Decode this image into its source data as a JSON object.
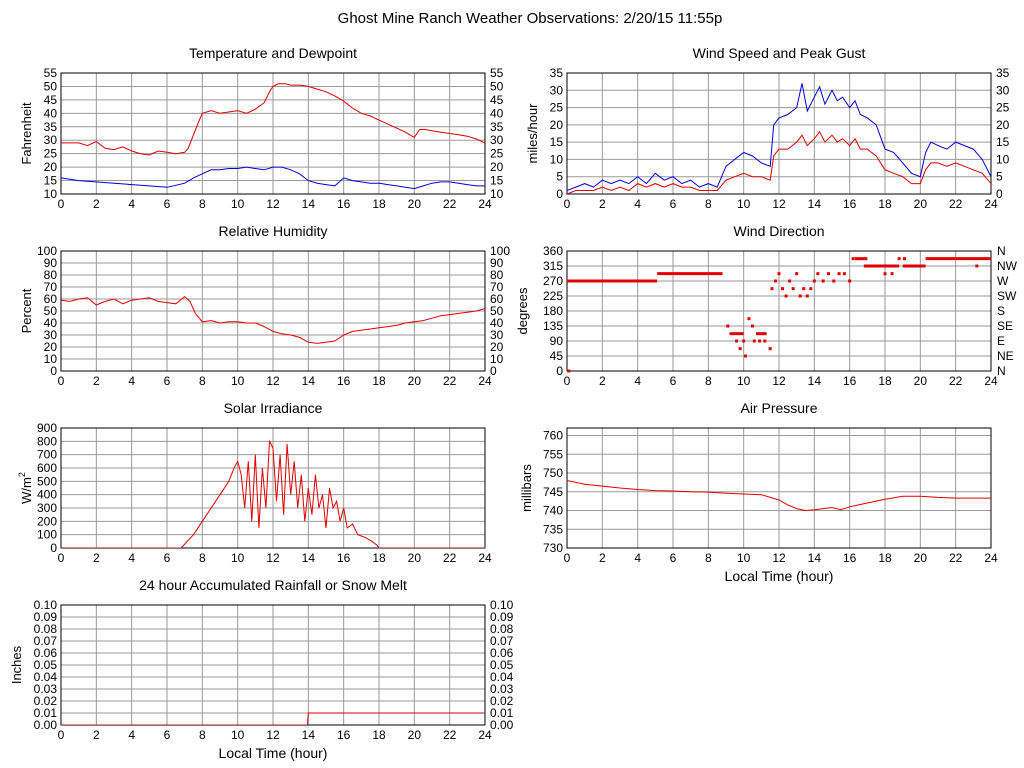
{
  "page": {
    "title": "Ghost Mine Ranch Weather Observations: 2/20/15 11:55p"
  },
  "chart_data": [
    {
      "id": "temp",
      "type": "line",
      "title": "Temperature and Dewpoint",
      "xlabel": "",
      "ylabel": "Fahrenheit",
      "xlim": [
        0,
        24
      ],
      "ylim": [
        10,
        55
      ],
      "xticks": [
        0,
        2,
        4,
        6,
        8,
        10,
        12,
        14,
        16,
        18,
        20,
        22,
        24
      ],
      "yticks": [
        10,
        15,
        20,
        25,
        30,
        35,
        40,
        45,
        50,
        55
      ],
      "right_axis": true,
      "grid": true,
      "series": [
        {
          "color": "#e00000",
          "x": [
            0,
            1,
            1.5,
            2,
            2.5,
            3,
            3.5,
            4,
            4.5,
            5,
            5.5,
            6,
            6.5,
            7,
            7.2,
            7.5,
            7.8,
            8,
            8.5,
            9,
            9.5,
            10,
            10.5,
            11,
            11.5,
            11.8,
            12,
            12.3,
            12.7,
            13,
            13.5,
            14,
            14.5,
            15,
            15.5,
            16,
            16.5,
            17,
            17.5,
            18,
            18.5,
            19,
            19.5,
            20,
            20.3,
            20.6,
            21,
            21.5,
            22,
            22.5,
            23,
            23.5,
            24
          ],
          "values": [
            29,
            29,
            28,
            29.5,
            27,
            26.5,
            27.5,
            26,
            25,
            24.5,
            26,
            25.5,
            25,
            25.5,
            27,
            32,
            37,
            40,
            41,
            40,
            40.5,
            41,
            40,
            41.5,
            44,
            48,
            50,
            51,
            51,
            50.5,
            50.5,
            50,
            49,
            48,
            46.5,
            44.5,
            42,
            40,
            39,
            37.5,
            36,
            34.5,
            33,
            31,
            34,
            34,
            33.5,
            33,
            32.5,
            32,
            31.5,
            30.5,
            29
          ]
        },
        {
          "color": "#0000e0",
          "x": [
            0,
            1,
            2,
            3,
            4,
            5,
            6,
            7,
            7.5,
            8,
            8.5,
            9,
            9.5,
            10,
            10.5,
            11,
            11.5,
            12,
            12.5,
            13,
            13.5,
            14,
            14.5,
            15,
            15.5,
            16,
            16.5,
            17,
            17.5,
            18,
            18.5,
            19,
            19.5,
            20,
            20.5,
            21,
            21.5,
            22,
            22.5,
            23,
            23.5,
            24
          ],
          "values": [
            16,
            15,
            14.5,
            14,
            13.5,
            13,
            12.5,
            14,
            16,
            17.5,
            19,
            19,
            19.5,
            19.5,
            20,
            19.5,
            19,
            20,
            20,
            19,
            17.5,
            15,
            14,
            13.5,
            13,
            16,
            15,
            14.5,
            14,
            14,
            13.5,
            13,
            12.5,
            12,
            13,
            14,
            14.5,
            14.5,
            14,
            13.5,
            13,
            13
          ]
        }
      ]
    },
    {
      "id": "wind",
      "type": "line",
      "title": "Wind Speed and Peak Gust",
      "xlabel": "",
      "ylabel": "miles/hour",
      "xlim": [
        0,
        24
      ],
      "ylim": [
        0,
        35
      ],
      "xticks": [
        0,
        2,
        4,
        6,
        8,
        10,
        12,
        14,
        16,
        18,
        20,
        22,
        24
      ],
      "yticks": [
        0,
        5,
        10,
        15,
        20,
        25,
        30,
        35
      ],
      "right_axis": true,
      "grid": true,
      "series": [
        {
          "color": "#0000e0",
          "x": [
            0,
            0.5,
            1,
            1.5,
            2,
            2.5,
            3,
            3.5,
            4,
            4.5,
            5,
            5.5,
            6,
            6.5,
            7,
            7.5,
            8,
            8.5,
            9,
            9.5,
            10,
            10.5,
            11,
            11.5,
            11.7,
            12,
            12.5,
            13,
            13.3,
            13.6,
            14,
            14.3,
            14.6,
            15,
            15.3,
            15.6,
            16,
            16.3,
            16.6,
            17,
            17.5,
            18,
            18.5,
            19,
            19.5,
            20,
            20.3,
            20.6,
            21,
            21.5,
            22,
            22.5,
            23,
            23.5,
            24
          ],
          "values": [
            1,
            2,
            3,
            2,
            4,
            3,
            4,
            3,
            5,
            3,
            6,
            4,
            5,
            3,
            4,
            2,
            3,
            2,
            8,
            10,
            12,
            11,
            9,
            8,
            20,
            22,
            23,
            25,
            32,
            24,
            28,
            31,
            26,
            30,
            27,
            28,
            25,
            27,
            23,
            22,
            20,
            13,
            12,
            9,
            6,
            5,
            12,
            15,
            14,
            13,
            15,
            14,
            13,
            10,
            5
          ]
        },
        {
          "color": "#e00000",
          "x": [
            0,
            0.5,
            1,
            1.5,
            2,
            2.5,
            3,
            3.5,
            4,
            4.5,
            5,
            5.5,
            6,
            6.5,
            7,
            7.5,
            8,
            8.5,
            9,
            9.5,
            10,
            10.5,
            11,
            11.5,
            11.7,
            12,
            12.5,
            13,
            13.3,
            13.6,
            14,
            14.3,
            14.6,
            15,
            15.3,
            15.6,
            16,
            16.3,
            16.6,
            17,
            17.5,
            18,
            18.5,
            19,
            19.5,
            20,
            20.3,
            20.6,
            21,
            21.5,
            22,
            22.5,
            23,
            23.5,
            24
          ],
          "values": [
            0,
            1,
            1,
            1,
            2,
            1,
            2,
            1,
            3,
            2,
            3,
            2,
            3,
            2,
            2,
            1,
            1,
            1,
            4,
            5,
            6,
            5,
            5,
            4,
            11,
            13,
            13,
            15,
            17,
            14,
            16,
            18,
            15,
            17,
            15,
            16,
            14,
            16,
            13,
            13,
            11,
            7,
            6,
            5,
            3,
            3,
            7,
            9,
            9,
            8,
            9,
            8,
            7,
            6,
            3
          ]
        }
      ]
    },
    {
      "id": "humidity",
      "type": "line",
      "title": "Relative Humidity",
      "xlabel": "",
      "ylabel": "Percent",
      "xlim": [
        0,
        24
      ],
      "ylim": [
        0,
        100
      ],
      "xticks": [
        0,
        2,
        4,
        6,
        8,
        10,
        12,
        14,
        16,
        18,
        20,
        22,
        24
      ],
      "yticks": [
        0,
        10,
        20,
        30,
        40,
        50,
        60,
        70,
        80,
        90,
        100
      ],
      "right_axis": true,
      "grid": true,
      "series": [
        {
          "color": "#e00000",
          "x": [
            0,
            0.5,
            1,
            1.5,
            2,
            2.5,
            3,
            3.5,
            4,
            4.5,
            5,
            5.5,
            6,
            6.5,
            7,
            7.3,
            7.6,
            8,
            8.5,
            9,
            9.5,
            10,
            10.5,
            11,
            11.5,
            12,
            12.5,
            13,
            13.5,
            14,
            14.5,
            15,
            15.5,
            16,
            16.5,
            17,
            17.5,
            18,
            18.5,
            19,
            19.5,
            20,
            20.5,
            21,
            21.5,
            22,
            22.5,
            23,
            23.5,
            24
          ],
          "values": [
            59,
            58,
            60,
            61,
            55,
            58,
            60,
            56,
            59,
            60,
            61,
            58,
            57,
            56,
            62,
            58,
            48,
            41,
            42,
            40,
            41,
            41,
            40,
            40,
            37,
            33,
            31,
            30,
            28,
            24,
            23,
            24,
            25,
            30,
            33,
            34,
            35,
            36,
            37,
            38,
            40,
            41,
            42,
            44,
            46,
            47,
            48,
            49,
            50,
            52
          ]
        }
      ]
    },
    {
      "id": "direction",
      "type": "scatter",
      "title": "Wind Direction",
      "xlabel": "",
      "ylabel": "degrees",
      "xlim": [
        0,
        24
      ],
      "ylim": [
        0,
        360
      ],
      "xticks": [
        0,
        2,
        4,
        6,
        8,
        10,
        12,
        14,
        16,
        18,
        20,
        22,
        24
      ],
      "yticks": [
        0,
        45,
        90,
        135,
        180,
        225,
        270,
        315,
        360
      ],
      "right_tick_labels": [
        "N",
        "NE",
        "E",
        "SE",
        "S",
        "SW",
        "W",
        "NW",
        "N"
      ],
      "grid": true,
      "color": "#e00000",
      "segments": [
        {
          "x": [
            0,
            5.1
          ],
          "y": 270
        },
        {
          "x": [
            5.1,
            8.8
          ],
          "y": 292
        },
        {
          "x": [
            9.2,
            10.0
          ],
          "y": 112
        },
        {
          "x": [
            10.7,
            11.3
          ],
          "y": 112
        },
        {
          "x": [
            16.3,
            17.0
          ],
          "y": 337
        },
        {
          "x": [
            16.8,
            18.8
          ],
          "y": 315
        },
        {
          "x": [
            19.0,
            20.3
          ],
          "y": 315
        },
        {
          "x": [
            20.3,
            24
          ],
          "y": 337
        }
      ],
      "points": [
        {
          "x": 0.1,
          "y": 0
        },
        {
          "x": 9.1,
          "y": 135
        },
        {
          "x": 9.6,
          "y": 90
        },
        {
          "x": 9.8,
          "y": 67
        },
        {
          "x": 10.0,
          "y": 90
        },
        {
          "x": 10.1,
          "y": 45
        },
        {
          "x": 10.3,
          "y": 157
        },
        {
          "x": 10.5,
          "y": 135
        },
        {
          "x": 10.6,
          "y": 90
        },
        {
          "x": 10.9,
          "y": 90
        },
        {
          "x": 11.2,
          "y": 90
        },
        {
          "x": 11.5,
          "y": 67
        },
        {
          "x": 11.6,
          "y": 247
        },
        {
          "x": 11.8,
          "y": 270
        },
        {
          "x": 12.0,
          "y": 292
        },
        {
          "x": 12.2,
          "y": 247
        },
        {
          "x": 12.4,
          "y": 225
        },
        {
          "x": 12.6,
          "y": 270
        },
        {
          "x": 12.8,
          "y": 247
        },
        {
          "x": 13.0,
          "y": 292
        },
        {
          "x": 13.2,
          "y": 225
        },
        {
          "x": 13.4,
          "y": 247
        },
        {
          "x": 13.6,
          "y": 225
        },
        {
          "x": 13.8,
          "y": 247
        },
        {
          "x": 14.0,
          "y": 270
        },
        {
          "x": 14.2,
          "y": 292
        },
        {
          "x": 14.5,
          "y": 270
        },
        {
          "x": 14.8,
          "y": 292
        },
        {
          "x": 15.1,
          "y": 270
        },
        {
          "x": 15.4,
          "y": 292
        },
        {
          "x": 15.7,
          "y": 292
        },
        {
          "x": 16.0,
          "y": 270
        },
        {
          "x": 16.2,
          "y": 337
        },
        {
          "x": 18.0,
          "y": 292
        },
        {
          "x": 18.4,
          "y": 292
        },
        {
          "x": 18.8,
          "y": 337
        },
        {
          "x": 19.1,
          "y": 337
        },
        {
          "x": 23.2,
          "y": 315
        }
      ]
    },
    {
      "id": "solar",
      "type": "line",
      "title": "Solar Irradiance",
      "xlabel": "",
      "ylabel": "W/m",
      "ylabel_sup": "2",
      "xlim": [
        0,
        24
      ],
      "ylim": [
        0,
        900
      ],
      "xticks": [
        0,
        2,
        4,
        6,
        8,
        10,
        12,
        14,
        16,
        18,
        20,
        22,
        24
      ],
      "yticks": [
        0,
        100,
        200,
        300,
        400,
        500,
        600,
        700,
        800,
        900
      ],
      "right_axis": false,
      "grid": true,
      "series": [
        {
          "color": "#e00000",
          "x": [
            0,
            6.8,
            7.5,
            8,
            8.5,
            9,
            9.5,
            9.8,
            10,
            10.2,
            10.4,
            10.6,
            10.8,
            11,
            11.2,
            11.4,
            11.6,
            11.8,
            12,
            12.2,
            12.4,
            12.6,
            12.8,
            13,
            13.2,
            13.4,
            13.6,
            13.8,
            14,
            14.2,
            14.4,
            14.6,
            14.8,
            15,
            15.2,
            15.4,
            15.6,
            15.8,
            16,
            16.2,
            16.5,
            16.8,
            17.2,
            17.6,
            17.9,
            18,
            24
          ],
          "values": [
            0,
            0,
            100,
            200,
            300,
            400,
            500,
            600,
            650,
            550,
            300,
            650,
            200,
            700,
            150,
            600,
            300,
            800,
            750,
            350,
            700,
            250,
            780,
            400,
            650,
            300,
            550,
            200,
            450,
            250,
            550,
            300,
            400,
            150,
            450,
            300,
            350,
            200,
            300,
            150,
            180,
            100,
            80,
            50,
            20,
            0,
            0
          ]
        }
      ]
    },
    {
      "id": "pressure",
      "type": "line",
      "title": "Air Pressure",
      "xlabel": "Local Time (hour)",
      "ylabel": "millibars",
      "xlim": [
        0,
        24
      ],
      "ylim": [
        730,
        762
      ],
      "xticks": [
        0,
        2,
        4,
        6,
        8,
        10,
        12,
        14,
        16,
        18,
        20,
        22,
        24
      ],
      "yticks": [
        730,
        735,
        740,
        745,
        750,
        755,
        760
      ],
      "right_axis": false,
      "grid": true,
      "series": [
        {
          "color": "#e00000",
          "x": [
            0,
            1,
            2,
            3,
            4,
            5,
            6,
            7,
            8,
            9,
            10,
            11,
            12,
            12.5,
            13,
            13.5,
            14,
            14.5,
            15,
            15.5,
            16,
            16.5,
            17,
            18,
            19,
            20,
            21,
            22,
            23,
            24
          ],
          "values": [
            748,
            747,
            746.5,
            746,
            745.6,
            745.3,
            745.2,
            745,
            744.9,
            744.6,
            744.4,
            744.2,
            742.8,
            741.5,
            740.5,
            740,
            740.2,
            740.5,
            740.8,
            740.2,
            741,
            741.5,
            742,
            743,
            743.8,
            743.8,
            743.5,
            743.3,
            743.3,
            743.3
          ]
        }
      ]
    },
    {
      "id": "rain",
      "type": "line",
      "title": "24 hour Accumulated Rainfall or Snow Melt",
      "xlabel": "Local Time (hour)",
      "ylabel": "Inches",
      "xlim": [
        0,
        24
      ],
      "ylim": [
        0,
        0.1
      ],
      "xticks": [
        0,
        2,
        4,
        6,
        8,
        10,
        12,
        14,
        16,
        18,
        20,
        22,
        24
      ],
      "yticks": [
        "0.00",
        "0.01",
        "0.02",
        "0.03",
        "0.04",
        "0.05",
        "0.06",
        "0.07",
        "0.08",
        "0.09",
        "0.10"
      ],
      "right_axis": true,
      "grid": true,
      "series": [
        {
          "color": "#e00000",
          "x": [
            0,
            13.95,
            14.0,
            24
          ],
          "values": [
            0,
            0,
            0.01,
            0.01
          ]
        }
      ]
    }
  ]
}
